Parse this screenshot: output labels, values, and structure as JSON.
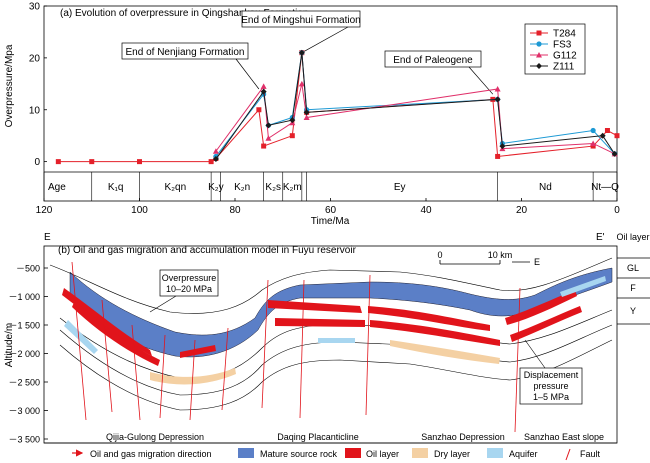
{
  "chart_data": [
    {
      "type": "line",
      "title": "(a) Evolution of overpressure in Qingshankou Formation",
      "xlabel": "Time/Ma",
      "ylabel": "Overpressure/Mpa",
      "xlim": [
        120,
        0
      ],
      "ylim": [
        -2,
        30
      ],
      "x_reversed": true,
      "xticks": [
        "120",
        "100",
        "80",
        "60",
        "40",
        "20",
        "0"
      ],
      "yticks": [
        "0",
        "10",
        "20",
        "30"
      ],
      "grid": false,
      "legend": "top-right",
      "series": [
        {
          "name": "T284",
          "color": "#e4202a",
          "marker": "square",
          "x": [
            117,
            110,
            100,
            85,
            84,
            75,
            74,
            68,
            66,
            65,
            26,
            25,
            5,
            2,
            0
          ],
          "y": [
            0,
            0,
            0,
            0,
            0.6,
            10,
            3,
            5,
            21,
            9.5,
            12,
            1,
            3,
            6,
            5
          ]
        },
        {
          "name": "FS3",
          "color": "#1c99d4",
          "marker": "circle",
          "x": [
            84,
            74,
            73,
            68,
            66,
            65,
            25,
            24,
            5,
            0.5
          ],
          "y": [
            1,
            13,
            7,
            8.5,
            21,
            10,
            12,
            3.5,
            6,
            1.5
          ]
        },
        {
          "name": "G112",
          "color": "#e0306a",
          "marker": "triangle",
          "x": [
            84,
            74,
            73,
            68,
            66,
            65,
            25,
            24,
            5,
            0.5
          ],
          "y": [
            2,
            14.5,
            4.5,
            7.5,
            15,
            8.5,
            14,
            2.5,
            3.5,
            1.5
          ]
        },
        {
          "name": "Z111",
          "color": "#1a1a1a",
          "marker": "diamond",
          "x": [
            84,
            74,
            73,
            68,
            66,
            65,
            25,
            24,
            3,
            0.5
          ],
          "y": [
            0.5,
            13.5,
            7,
            8,
            21,
            9.5,
            12,
            3,
            5,
            1.5
          ]
        }
      ],
      "annotations": [
        "End of Nenjiang Formation",
        "End of Mingshui Formation",
        "End of Paleogene"
      ],
      "age_row": {
        "label": "Age",
        "ages": [
          "K₁q",
          "K₂qn",
          "K₂y",
          "K₂n",
          "K₂s",
          "K₂m",
          "Ey",
          "Nd",
          "Nt—Q"
        ],
        "boundaries_ma": [
          120,
          110,
          100,
          85,
          83,
          74,
          70,
          66,
          65,
          25,
          5,
          0
        ]
      }
    },
    {
      "type": "diagram",
      "title": "(b) Oil and gas migration and accumulation model in Fuyu reservoir",
      "ylabel": "Altitude/m",
      "yticks": [
        "－500",
        "－1 000",
        "－1 500",
        "－2 000",
        "－2 500",
        "－3 000",
        "－3 500"
      ],
      "section_left": "E",
      "section_right": "E'",
      "oil_layer_header": "Oil layer",
      "oil_layers": [
        "GL",
        "F",
        "Y"
      ],
      "scale_label_0": "0",
      "scale_label_10": "10 km",
      "north_label": "E",
      "callout_overpressure": [
        "Overpressure",
        "10–20 MPa"
      ],
      "callout_displacement": [
        "Displacement",
        "pressure",
        "1–5 MPa"
      ],
      "zones": [
        "Qijia-Gulong Depression",
        "Daqing Placanticline",
        "Sanzhao Depression",
        "Sanzhao East slope"
      ],
      "legend": [
        {
          "label": "Oil and gas migration direction",
          "icon": "arrow-icon"
        },
        {
          "label": "Mature source rock",
          "color": "#5b7fc7"
        },
        {
          "label": "Oil layer",
          "color": "#e1141b"
        },
        {
          "label": "Dry layer",
          "color": "#f4d0a3"
        },
        {
          "label": "Aquifer",
          "color": "#a8d6f0"
        },
        {
          "label": "Fault",
          "icon": "fault-icon"
        }
      ]
    }
  ]
}
